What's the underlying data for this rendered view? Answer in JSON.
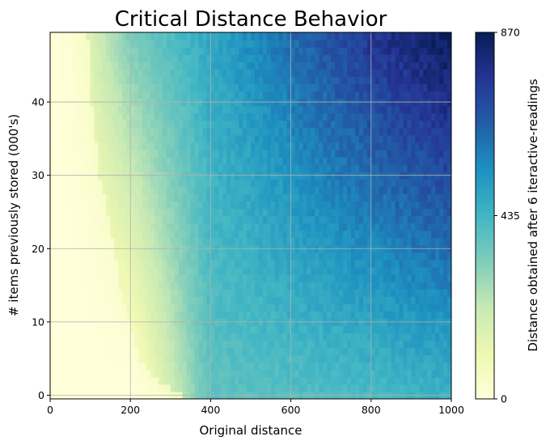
{
  "chart_data": {
    "type": "heatmap",
    "title": "Critical Distance Behavior",
    "xlabel": "Original distance",
    "ylabel": "# items previously stored (000's)",
    "xlim": [
      0,
      1000
    ],
    "ylim": [
      -0.5,
      49.5
    ],
    "xticks": [
      0,
      200,
      400,
      600,
      800,
      1000
    ],
    "yticks": [
      0,
      10,
      20,
      30,
      40
    ],
    "grid": true,
    "colormap": "YlGnBu",
    "colormap_stops": [
      "#ffffd9",
      "#edf8b1",
      "#c7e9b4",
      "#7fcdbb",
      "#41b6c4",
      "#1d91c0",
      "#225ea8",
      "#253494",
      "#081d58"
    ],
    "colorbar": {
      "label": "Distance obtained after 6 iteractive-readings",
      "min": 0,
      "max": 870,
      "ticks": [
        0,
        435,
        870
      ]
    },
    "threshold_curve": {
      "description_of_data": "distance below which the value stays at 0, per items stored",
      "y": [
        0,
        2,
        5,
        10,
        15,
        20,
        30,
        40,
        49
      ],
      "x": [
        330,
        270,
        220,
        200,
        175,
        160,
        125,
        105,
        95
      ]
    },
    "value_model": {
      "x": [
        0,
        200,
        400,
        600,
        800,
        1000
      ],
      "value_at_y0": [
        0,
        0,
        380,
        400,
        420,
        450
      ],
      "value_at_y49": [
        0,
        330,
        480,
        620,
        760,
        870
      ]
    }
  }
}
